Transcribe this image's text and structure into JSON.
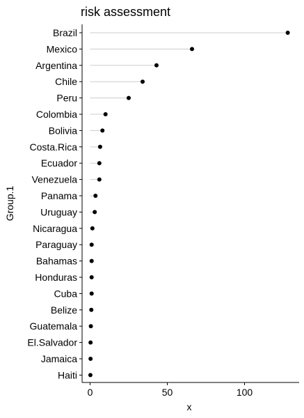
{
  "chart_data": {
    "type": "lollipop",
    "title": "risk assessment",
    "xlabel": "x",
    "ylabel": "Group.1",
    "xlim": [
      0,
      130
    ],
    "xticks": [
      0,
      50,
      100
    ],
    "grid": false,
    "colors": {
      "stem": "#cccccc",
      "point": "#000000",
      "axis": "#000000"
    },
    "categories": [
      "Brazil",
      "Mexico",
      "Argentina",
      "Chile",
      "Peru",
      "Colombia",
      "Bolivia",
      "Costa.Rica",
      "Ecuador",
      "Venezuela",
      "Panama",
      "Uruguay",
      "Nicaragua",
      "Paraguay",
      "Bahamas",
      "Honduras",
      "Cuba",
      "Belize",
      "Guatemala",
      "El.Salvador",
      "Jamaica",
      "Haiti"
    ],
    "values": [
      128,
      66,
      43,
      34,
      25,
      10,
      8,
      6.5,
      6,
      6,
      3.5,
      3,
      1.5,
      1,
      1,
      1,
      1,
      0.8,
      0.5,
      0.3,
      0.3,
      0.2
    ]
  }
}
